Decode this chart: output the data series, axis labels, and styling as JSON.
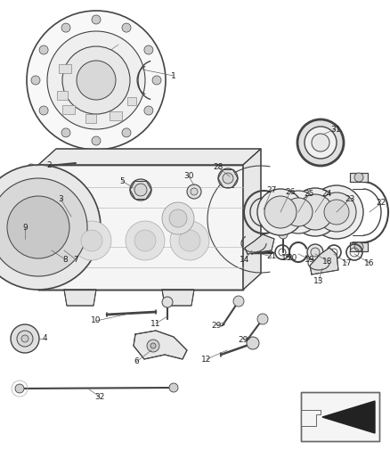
{
  "bg_color": "#ffffff",
  "line_color": "#444444",
  "label_color": "#222222",
  "label_fontsize": 6.5,
  "leader_color": "#666666",
  "fig_w": 4.38,
  "fig_h": 5.33,
  "dpi": 100
}
